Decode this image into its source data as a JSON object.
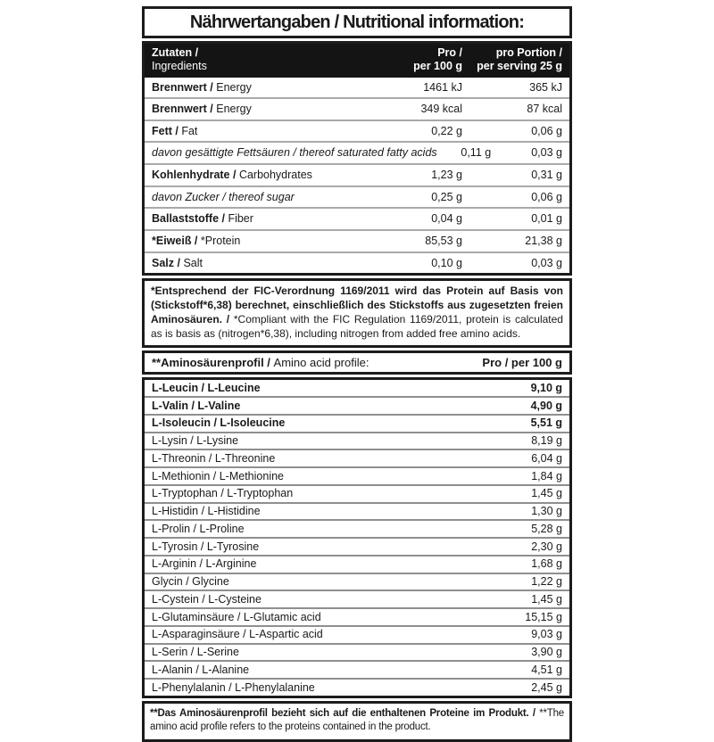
{
  "title": "Nährwertangaben / Nutritional information:",
  "main_table": {
    "header": {
      "col1_line1": "Zutaten /",
      "col1_line2": "Ingredients",
      "col2_line1": "Pro /",
      "col2_line2": "per 100 g",
      "col3_line1": "pro Portion /",
      "col3_line2": "per serving 25 g"
    },
    "rows": [
      {
        "de": "Brennwert / ",
        "en": "Energy",
        "per100": "1461 kJ",
        "portion": "365 kJ",
        "style": "normal"
      },
      {
        "de": "Brennwert / ",
        "en": "Energy",
        "per100": "349 kcal",
        "portion": "87 kcal",
        "style": "normal"
      },
      {
        "de": "Fett / ",
        "en": "Fat",
        "per100": "0,22 g",
        "portion": "0,06 g",
        "style": "normal"
      },
      {
        "de": "davon gesättigte Fettsäuren / ",
        "en": "thereof saturated fatty acids",
        "per100": "0,11 g",
        "portion": "0,03 g",
        "style": "italic"
      },
      {
        "de": "Kohlenhydrate / ",
        "en": "Carbohydrates",
        "per100": "1,23 g",
        "portion": "0,31 g",
        "style": "normal"
      },
      {
        "de": "davon Zucker / ",
        "en": "thereof sugar",
        "per100": "0,25 g",
        "portion": "0,06 g",
        "style": "italic"
      },
      {
        "de": "Ballaststoffe / ",
        "en": "Fiber",
        "per100": "0,04 g",
        "portion": "0,01 g",
        "style": "normal"
      },
      {
        "de": "*Eiweiß / ",
        "en": "*Protein",
        "per100": "85,53 g",
        "portion": "21,38 g",
        "style": "normal"
      },
      {
        "de": "Salz / ",
        "en": "Salt",
        "per100": "0,10 g",
        "portion": "0,03 g",
        "style": "normal"
      }
    ]
  },
  "protein_note": {
    "de": "*Entsprechend der FIC-Verordnung 1169/2011 wird das Protein auf Basis von (Stickstoff*6,38) berechnet, einschließlich des Stickstoffs aus zugesetzten freien Aminosäuren. / ",
    "en": "*Compliant with the FIC Regulation 1169/2011, protein is calculated as is basis as (nitrogen*6,38), including nitrogen from added free amino acids."
  },
  "amino_table": {
    "header": {
      "label_de": "**Aminosäurenprofil / ",
      "label_en": "Amino acid profile:",
      "value": "Pro / per 100 g"
    },
    "rows": [
      {
        "label": "L-Leucin  / L-Leucine",
        "value": "9,10 g",
        "bold": true
      },
      {
        "label": "L-Valin / L-Valine",
        "value": "4,90 g",
        "bold": true
      },
      {
        "label": "L-Isoleucin / L-Isoleucine",
        "value": "5,51 g",
        "bold": true
      },
      {
        "label": "L-Lysin / L-Lysine",
        "value": "8,19 g",
        "bold": false
      },
      {
        "label": "L-Threonin / L-Threonine",
        "value": "6,04 g",
        "bold": false
      },
      {
        "label": "L-Methionin / L-Methionine",
        "value": "1,84 g",
        "bold": false
      },
      {
        "label": "L-Tryptophan / L-Tryptophan",
        "value": "1,45 g",
        "bold": false
      },
      {
        "label": "L-Histidin / L-Histidine",
        "value": "1,30 g",
        "bold": false
      },
      {
        "label": "L-Prolin / L-Proline",
        "value": "5,28 g",
        "bold": false
      },
      {
        "label": "L-Tyrosin / L-Tyrosine",
        "value": "2,30 g",
        "bold": false
      },
      {
        "label": "L-Arginin / L-Arginine",
        "value": "1,68 g",
        "bold": false
      },
      {
        "label": "Glycin / Glycine",
        "value": "1,22 g",
        "bold": false
      },
      {
        "label": "L-Cystein / L-Cysteine",
        "value": "1,45 g",
        "bold": false
      },
      {
        "label": "L-Glutaminsäure / L-Glutamic acid",
        "value": "15,15 g",
        "bold": false
      },
      {
        "label": "L-Asparaginsäure / L-Aspartic acid",
        "value": "9,03 g",
        "bold": false
      },
      {
        "label": "L-Serin / L-Serine",
        "value": "3,90 g",
        "bold": false
      },
      {
        "label": "L-Alanin / L-Alanine",
        "value": "4,51 g",
        "bold": false
      },
      {
        "label": "L-Phenylalanin / L-Phenylalanine",
        "value": "2,45 g",
        "bold": false
      }
    ]
  },
  "amino_note": {
    "de": "**Das Aminosäurenprofil bezieht sich auf die enthaltenen Proteine im Produkt. / ",
    "en": "**The amino acid profile refers to the proteins contained in the product."
  }
}
